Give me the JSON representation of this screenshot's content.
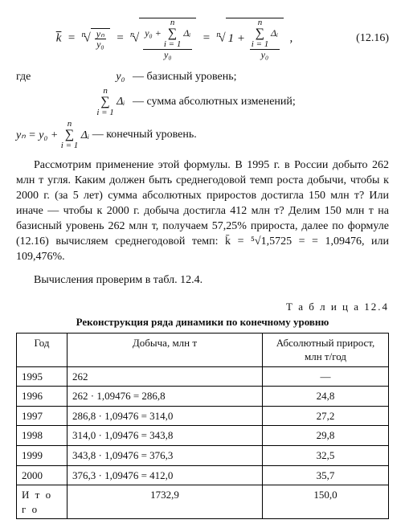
{
  "formula": {
    "lhs": "k̄ =",
    "eqnum": "(12.16)",
    "p1_num": "yₙ",
    "p1_den": "y₀",
    "p2_num_left": "y₀ +",
    "p2_num_sum_top": "n",
    "p2_num_sum_bot": "i = 1",
    "p2_num_sum_arg": "Δᵢ",
    "p2_den": "y₀",
    "p3_left": "1 +",
    "p3_num_sum_top": "n",
    "p3_num_sum_bot": "i = 1",
    "p3_num_sum_arg": "Δᵢ",
    "p3_den": "y₀",
    "root_index": "n"
  },
  "defs": {
    "where": "где",
    "d1_sym": "y₀",
    "d1_txt": "— базисный уровень;",
    "d2_sum_top": "n",
    "d2_sum_bot": "i = 1",
    "d2_sum_arg": "Δᵢ",
    "d2_txt": "— сумма абсолютных изменений;",
    "d3_lhs": "yₙ = y₀ +",
    "d3_sum_top": "n",
    "d3_sum_bot": "i = 1",
    "d3_sum_arg": "Δᵢ",
    "d3_txt": "— конечный уровень."
  },
  "para1": "Рассмотрим применение этой формулы. В 1995 г. в России добыто 262 млн т угля. Каким должен быть среднегодовой темп роста добычи, чтобы к 2000 г. (за 5 лет) сумма абсолютных приростов достигла 150 млн т? Или иначе — чтобы к 2000 г. добыча достигла 412 млн т? Делим 150 млн т на базисный уровень 262 млн т, получаем 57,25% прироста, далее по формуле (12.16) вычисляем среднегодовой темп: k̄ = ⁵√1,5725 = = 1,09476, или 109,476%.",
  "para2": "Вычисления проверим в табл. 12.4.",
  "table": {
    "label": "Т а б л и ц а  12.4",
    "caption": "Реконструкция ряда динамики по конечному уровню",
    "headers": [
      "Год",
      "Добыча, млн т",
      "Абсолютный прирост, млн т/год"
    ],
    "rows": [
      {
        "year": "1995",
        "calc": "262",
        "inc": "—"
      },
      {
        "year": "1996",
        "calc": "262 · 1,09476 = 286,8",
        "inc": "24,8"
      },
      {
        "year": "1997",
        "calc": "286,8 · 1,09476 = 314,0",
        "inc": "27,2"
      },
      {
        "year": "1998",
        "calc": "314,0 · 1,09476 = 343,8",
        "inc": "29,8"
      },
      {
        "year": "1999",
        "calc": "343,8 · 1,09476 = 376,3",
        "inc": "32,5"
      },
      {
        "year": "2000",
        "calc": "376,3 · 1,09476 = 412,0",
        "inc": "35,7"
      }
    ],
    "totals": {
      "label": "И т о г о",
      "calc": "1732,9",
      "inc": "150,0"
    }
  }
}
